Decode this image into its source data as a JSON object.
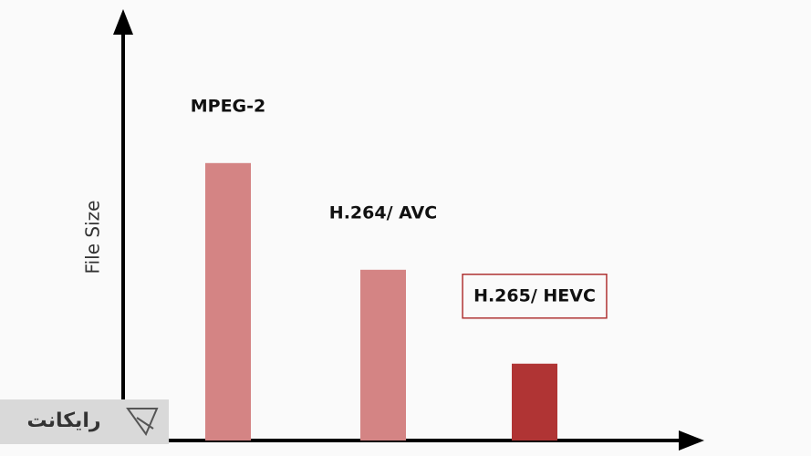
{
  "chart_data": {
    "type": "bar",
    "y_label": "File Size",
    "categories": [
      "MPEG-2",
      "H.264/ AVC",
      "H.265/ HEVC"
    ],
    "values": [
      65,
      40,
      18
    ],
    "colors": [
      "#d48484",
      "#d48484",
      "#b03434"
    ],
    "ylim": [
      0,
      100
    ]
  },
  "watermark": "رایکانت"
}
